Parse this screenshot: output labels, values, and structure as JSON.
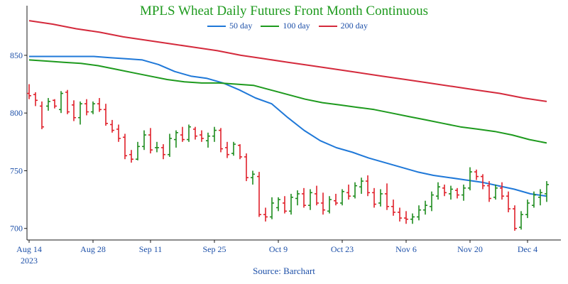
{
  "chart_data": {
    "type": "line",
    "title": "MPLS Wheat Daily Futures Front Month Continuous",
    "source": "Source: Barchart",
    "x_tick_labels": [
      "Aug 14",
      "Aug 28",
      "Sep 11",
      "Sep 25",
      "Oct 9",
      "Oct 23",
      "Nov 6",
      "Nov 20",
      "Dec 4"
    ],
    "x_year_label": "2023",
    "y_ticks": [
      700,
      750,
      800,
      850
    ],
    "ylim": [
      690,
      893
    ],
    "grid": false,
    "legend_position": "top-center",
    "colors": {
      "title": "#1e9a1e",
      "axis_text": "#1c4fa8",
      "up_bar": "#1e8c1e",
      "down_bar": "#e0202a"
    },
    "series": [
      {
        "name": "50 day",
        "color": "#1f78d8",
        "values": [
          849,
          849,
          849,
          849,
          849,
          848,
          847,
          846,
          842,
          836,
          832,
          830,
          826,
          820,
          813,
          808,
          796,
          785,
          776,
          770,
          766,
          761,
          757,
          753,
          749,
          746,
          744,
          742,
          740,
          737,
          734,
          730,
          728
        ]
      },
      {
        "name": "100 day",
        "color": "#1e9a1e",
        "values": [
          846,
          845,
          844,
          843,
          841,
          838,
          835,
          832,
          829,
          827,
          826,
          826,
          825,
          824,
          820,
          816,
          812,
          809,
          807,
          805,
          803,
          800,
          797,
          794,
          791,
          788,
          786,
          784,
          781,
          777,
          774
        ]
      },
      {
        "name": "200 day",
        "color": "#d42a3c",
        "values": [
          880,
          877,
          873,
          870,
          866,
          863,
          860,
          857,
          854,
          850,
          847,
          844,
          841,
          838,
          835,
          832,
          829,
          826,
          823,
          820,
          817,
          813,
          810
        ]
      }
    ],
    "ohlc": [
      {
        "date": "Aug 14",
        "open": 817,
        "high": 825,
        "low": 812,
        "close": 815
      },
      {
        "date": "Aug 15",
        "open": 816,
        "high": 818,
        "low": 806,
        "close": 811
      },
      {
        "date": "Aug 16",
        "open": 806,
        "high": 810,
        "low": 786,
        "close": 788
      },
      {
        "date": "Aug 17",
        "open": 806,
        "high": 813,
        "low": 802,
        "close": 810
      },
      {
        "date": "Aug 18",
        "open": 811,
        "high": 812,
        "low": 804,
        "close": 806
      },
      {
        "date": "Aug 21",
        "open": 803,
        "high": 819,
        "low": 800,
        "close": 817
      },
      {
        "date": "Aug 22",
        "open": 818,
        "high": 820,
        "low": 799,
        "close": 801
      },
      {
        "date": "Aug 23",
        "open": 807,
        "high": 811,
        "low": 793,
        "close": 796
      },
      {
        "date": "Aug 24",
        "open": 796,
        "high": 810,
        "low": 790,
        "close": 808
      },
      {
        "date": "Aug 25",
        "open": 808,
        "high": 812,
        "low": 798,
        "close": 801
      },
      {
        "date": "Aug 28",
        "open": 801,
        "high": 810,
        "low": 799,
        "close": 808
      },
      {
        "date": "Aug 29",
        "open": 808,
        "high": 813,
        "low": 801,
        "close": 803
      },
      {
        "date": "Aug 30",
        "open": 803,
        "high": 808,
        "low": 789,
        "close": 791
      },
      {
        "date": "Aug 31",
        "open": 790,
        "high": 794,
        "low": 783,
        "close": 785
      },
      {
        "date": "Sep 1",
        "open": 786,
        "high": 790,
        "low": 775,
        "close": 778
      },
      {
        "date": "Sep 5",
        "open": 779,
        "high": 782,
        "low": 760,
        "close": 763
      },
      {
        "date": "Sep 6",
        "open": 764,
        "high": 768,
        "low": 757,
        "close": 760
      },
      {
        "date": "Sep 7",
        "open": 760,
        "high": 775,
        "low": 759,
        "close": 771
      },
      {
        "date": "Sep 8",
        "open": 771,
        "high": 785,
        "low": 768,
        "close": 781
      },
      {
        "date": "Sep 11",
        "open": 781,
        "high": 787,
        "low": 765,
        "close": 768
      },
      {
        "date": "Sep 12",
        "open": 770,
        "high": 775,
        "low": 766,
        "close": 770
      },
      {
        "date": "Sep 13",
        "open": 770,
        "high": 773,
        "low": 760,
        "close": 764
      },
      {
        "date": "Sep 14",
        "open": 764,
        "high": 782,
        "low": 762,
        "close": 778
      },
      {
        "date": "Sep 15",
        "open": 777,
        "high": 785,
        "low": 770,
        "close": 783
      },
      {
        "date": "Sep 18",
        "open": 781,
        "high": 788,
        "low": 775,
        "close": 777
      },
      {
        "date": "Sep 19",
        "open": 777,
        "high": 790,
        "low": 775,
        "close": 788
      },
      {
        "date": "Sep 20",
        "open": 786,
        "high": 788,
        "low": 777,
        "close": 780
      },
      {
        "date": "Sep 21",
        "open": 781,
        "high": 785,
        "low": 775,
        "close": 778
      },
      {
        "date": "Sep 22",
        "open": 776,
        "high": 783,
        "low": 770,
        "close": 780
      },
      {
        "date": "Sep 25",
        "open": 780,
        "high": 788,
        "low": 775,
        "close": 785
      },
      {
        "date": "Sep 26",
        "open": 785,
        "high": 787,
        "low": 766,
        "close": 769
      },
      {
        "date": "Sep 27",
        "open": 770,
        "high": 775,
        "low": 761,
        "close": 764
      },
      {
        "date": "Sep 28",
        "open": 765,
        "high": 775,
        "low": 763,
        "close": 773
      },
      {
        "date": "Sep 29",
        "open": 772,
        "high": 773,
        "low": 760,
        "close": 762
      },
      {
        "date": "Oct 2",
        "open": 762,
        "high": 765,
        "low": 741,
        "close": 744
      },
      {
        "date": "Oct 3",
        "open": 744,
        "high": 750,
        "low": 738,
        "close": 747
      },
      {
        "date": "Oct 4",
        "open": 745,
        "high": 749,
        "low": 710,
        "close": 712
      },
      {
        "date": "Oct 5",
        "open": 712,
        "high": 718,
        "low": 706,
        "close": 710
      },
      {
        "date": "Oct 6",
        "open": 710,
        "high": 727,
        "low": 708,
        "close": 722
      },
      {
        "date": "Oct 9",
        "open": 718,
        "high": 727,
        "low": 715,
        "close": 725
      },
      {
        "date": "Oct 10",
        "open": 722,
        "high": 728,
        "low": 713,
        "close": 715
      },
      {
        "date": "Oct 11",
        "open": 715,
        "high": 730,
        "low": 712,
        "close": 727
      },
      {
        "date": "Oct 12",
        "open": 726,
        "high": 733,
        "low": 720,
        "close": 730
      },
      {
        "date": "Oct 13",
        "open": 730,
        "high": 735,
        "low": 718,
        "close": 720
      },
      {
        "date": "Oct 16",
        "open": 720,
        "high": 734,
        "low": 716,
        "close": 731
      },
      {
        "date": "Oct 17",
        "open": 730,
        "high": 737,
        "low": 720,
        "close": 722
      },
      {
        "date": "Oct 18",
        "open": 722,
        "high": 731,
        "low": 712,
        "close": 716
      },
      {
        "date": "Oct 19",
        "open": 715,
        "high": 728,
        "low": 713,
        "close": 725
      },
      {
        "date": "Oct 20",
        "open": 724,
        "high": 730,
        "low": 720,
        "close": 722
      },
      {
        "date": "Oct 23",
        "open": 722,
        "high": 734,
        "low": 720,
        "close": 732
      },
      {
        "date": "Oct 24",
        "open": 731,
        "high": 738,
        "low": 725,
        "close": 728
      },
      {
        "date": "Oct 25",
        "open": 728,
        "high": 740,
        "low": 726,
        "close": 737
      },
      {
        "date": "Oct 26",
        "open": 736,
        "high": 744,
        "low": 730,
        "close": 741
      },
      {
        "date": "Oct 27",
        "open": 741,
        "high": 746,
        "low": 728,
        "close": 731
      },
      {
        "date": "Oct 30",
        "open": 731,
        "high": 735,
        "low": 718,
        "close": 721
      },
      {
        "date": "Oct 31",
        "open": 722,
        "high": 734,
        "low": 719,
        "close": 730
      },
      {
        "date": "Nov 1",
        "open": 730,
        "high": 739,
        "low": 716,
        "close": 719
      },
      {
        "date": "Nov 2",
        "open": 719,
        "high": 725,
        "low": 711,
        "close": 714
      },
      {
        "date": "Nov 3",
        "open": 714,
        "high": 718,
        "low": 706,
        "close": 709
      },
      {
        "date": "Nov 6",
        "open": 709,
        "high": 715,
        "low": 704,
        "close": 708
      },
      {
        "date": "Nov 7",
        "open": 708,
        "high": 713,
        "low": 704,
        "close": 710
      },
      {
        "date": "Nov 8",
        "open": 710,
        "high": 720,
        "low": 707,
        "close": 716
      },
      {
        "date": "Nov 9",
        "open": 716,
        "high": 724,
        "low": 712,
        "close": 720
      },
      {
        "date": "Nov 10",
        "open": 719,
        "high": 732,
        "low": 715,
        "close": 729
      },
      {
        "date": "Nov 13",
        "open": 728,
        "high": 740,
        "low": 725,
        "close": 736
      },
      {
        "date": "Nov 14",
        "open": 735,
        "high": 738,
        "low": 728,
        "close": 731
      },
      {
        "date": "Nov 15",
        "open": 730,
        "high": 737,
        "low": 725,
        "close": 734
      },
      {
        "date": "Nov 16",
        "open": 733,
        "high": 735,
        "low": 726,
        "close": 729
      },
      {
        "date": "Nov 17",
        "open": 729,
        "high": 738,
        "low": 724,
        "close": 735
      },
      {
        "date": "Nov 20",
        "open": 735,
        "high": 753,
        "low": 733,
        "close": 749
      },
      {
        "date": "Nov 21",
        "open": 749,
        "high": 751,
        "low": 742,
        "close": 745
      },
      {
        "date": "Nov 22",
        "open": 745,
        "high": 747,
        "low": 734,
        "close": 737
      },
      {
        "date": "Nov 24",
        "open": 737,
        "high": 741,
        "low": 723,
        "close": 726
      },
      {
        "date": "Nov 27",
        "open": 727,
        "high": 738,
        "low": 725,
        "close": 735
      },
      {
        "date": "Nov 28",
        "open": 735,
        "high": 740,
        "low": 725,
        "close": 728
      },
      {
        "date": "Nov 29",
        "open": 728,
        "high": 732,
        "low": 714,
        "close": 717
      },
      {
        "date": "Nov 30",
        "open": 717,
        "high": 720,
        "low": 698,
        "close": 700
      },
      {
        "date": "Dec 1",
        "open": 701,
        "high": 715,
        "low": 699,
        "close": 712
      },
      {
        "date": "Dec 4",
        "open": 712,
        "high": 725,
        "low": 709,
        "close": 722
      },
      {
        "date": "Dec 5",
        "open": 720,
        "high": 732,
        "low": 718,
        "close": 729
      },
      {
        "date": "Dec 6",
        "open": 727,
        "high": 734,
        "low": 720,
        "close": 731
      },
      {
        "date": "Dec 7",
        "open": 730,
        "high": 741,
        "low": 723,
        "close": 738
      }
    ]
  }
}
